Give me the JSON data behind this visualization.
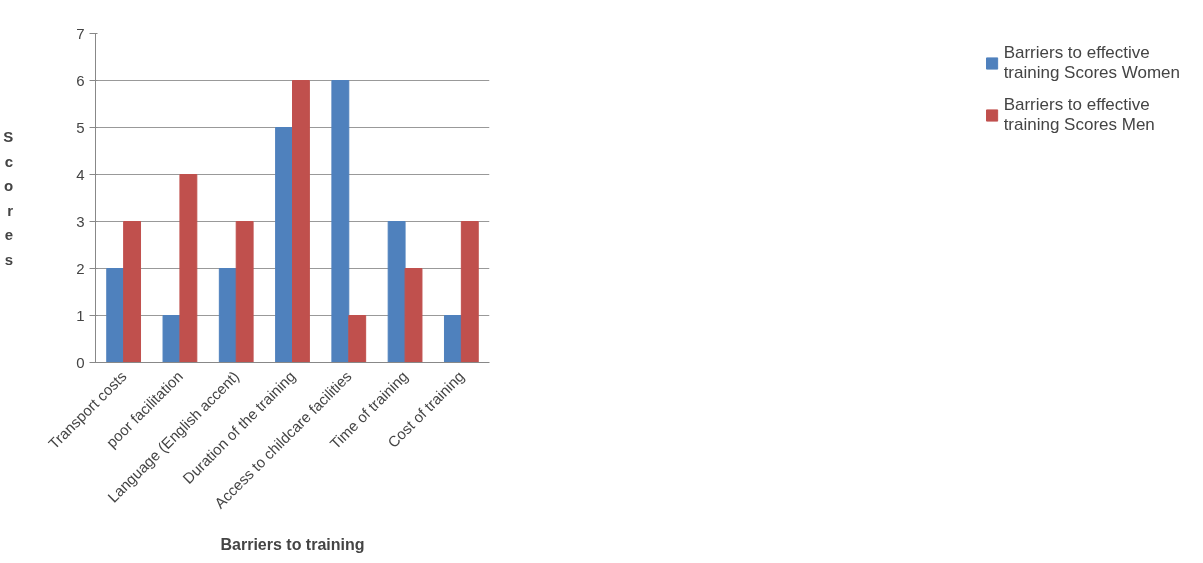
{
  "chart_data": {
    "type": "bar",
    "xlabel": "Barriers to training",
    "ylabel": "Scores",
    "categories": [
      "Transport costs",
      "poor facilitation",
      "Language (English accent)",
      "Duration of the training",
      "Access to childcare facilities",
      "Time of training",
      "Cost of training"
    ],
    "series": [
      {
        "name": "Barriers to effective training Scores Women",
        "color": "#4f81bd",
        "values": [
          2,
          1,
          2,
          5,
          6,
          3,
          1
        ]
      },
      {
        "name": "Barriers to effective training Scores Men",
        "color": "#c0504d",
        "values": [
          3,
          4,
          3,
          6,
          1,
          2,
          3
        ]
      }
    ],
    "ylim": [
      0,
      7
    ],
    "yticks": [
      0,
      1,
      2,
      3,
      4,
      5,
      6,
      7
    ],
    "grid": "y",
    "legend": "right"
  }
}
